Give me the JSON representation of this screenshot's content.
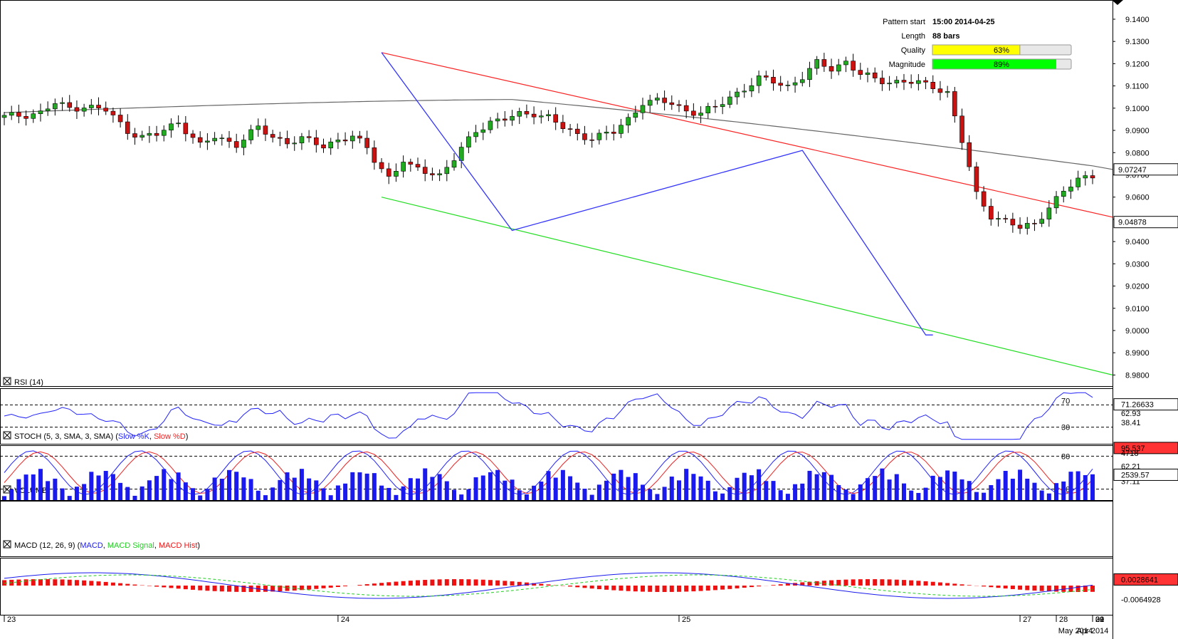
{
  "pattern_info": {
    "rows": [
      {
        "label": "Pattern start",
        "value": "15:00 2014-04-25"
      },
      {
        "label": "Length",
        "value": "88 bars"
      }
    ],
    "quality": {
      "label": "Quality",
      "text": "63%",
      "fraction": 0.63,
      "color": "#ffff00"
    },
    "magnitude": {
      "label": "Magnitude",
      "text": "89%",
      "fraction": 0.89,
      "color": "#00ff00"
    }
  },
  "price_axis": {
    "ticks": [
      "9.1400",
      "9.1300",
      "9.1200",
      "9.1100",
      "9.1000",
      "9.0900",
      "9.0800",
      "9.0700",
      "9.0600",
      "9.0500",
      "9.0400",
      "9.0300",
      "9.0200",
      "9.0100",
      "9.0000",
      "8.9900",
      "8.9800"
    ],
    "current_price": "9.04878",
    "ma_value": "9.07247"
  },
  "panels": {
    "rsi": {
      "title": "RSI (14)",
      "levels": [
        "70",
        "30"
      ],
      "right_labels": [
        "71.26633",
        "62.93",
        "38.41"
      ]
    },
    "stoch": {
      "title": "STOCH (5, 3, SMA, 3, SMA)",
      "k_label": "Slow %K",
      "d_label": "Slow %D",
      "levels": [
        "80",
        "20"
      ],
      "right_labels": [
        "95.537",
        "62.21",
        "37.11"
      ]
    },
    "volume": {
      "title": "VOLUME",
      "right_labels": [
        "4718",
        "2539.57"
      ]
    },
    "macd": {
      "title": "MACD (12, 26, 9)",
      "macd_label": "MACD",
      "signal_label": "MACD Signal",
      "hist_label": "MACD Hist",
      "right_labels": [
        "0.0028641",
        "-0.0064928"
      ]
    }
  },
  "time_axis": {
    "days": [
      "23",
      "24",
      "25",
      "27",
      "28",
      "29",
      "30",
      "01",
      "02"
    ],
    "months": [
      "Apr 2014",
      "May 2014"
    ]
  },
  "colors": {
    "bull": "#22aa22",
    "bear": "#cc1111",
    "pattern_lines": "#3333ff",
    "upper_trend": "#ff2222",
    "lower_trend": "#22dd22",
    "moving_average": "#666666",
    "rsi_line": "#2222ff",
    "stoch_k": "#2222ff",
    "stoch_d": "#ee2222",
    "volume_bar": "#1a1aee",
    "macd_line": "#1a1aee",
    "macd_signal": "#22cc22",
    "macd_hist": "#ee1111"
  },
  "chart_data": {
    "type": "candlestick",
    "price_range": [
      8.975,
      9.148
    ],
    "bars": 151,
    "close_anchors": [
      [
        0,
        9.096
      ],
      [
        5,
        9.098
      ],
      [
        7,
        9.102
      ],
      [
        9,
        9.1
      ],
      [
        11,
        9.101
      ],
      [
        14,
        9.099
      ],
      [
        17,
        9.09
      ],
      [
        19,
        9.087
      ],
      [
        21,
        9.088
      ],
      [
        24,
        9.094
      ],
      [
        27,
        9.083
      ],
      [
        29,
        9.087
      ],
      [
        32,
        9.084
      ],
      [
        35,
        9.091
      ],
      [
        37,
        9.087
      ],
      [
        39,
        9.085
      ],
      [
        41,
        9.086
      ],
      [
        44,
        9.083
      ],
      [
        46,
        9.086
      ],
      [
        48,
        9.087
      ],
      [
        50,
        9.082
      ],
      [
        51,
        9.077
      ],
      [
        53,
        9.069
      ],
      [
        55,
        9.076
      ],
      [
        56,
        9.073
      ],
      [
        58,
        9.072
      ],
      [
        60,
        9.07
      ],
      [
        62,
        9.077
      ],
      [
        65,
        9.09
      ],
      [
        67,
        9.094
      ],
      [
        69,
        9.095
      ],
      [
        71,
        9.097
      ],
      [
        73,
        9.098
      ],
      [
        75,
        9.096
      ],
      [
        77,
        9.091
      ],
      [
        79,
        9.088
      ],
      [
        81,
        9.087
      ],
      [
        84,
        9.089
      ],
      [
        86,
        9.095
      ],
      [
        88,
        9.103
      ],
      [
        90,
        9.103
      ],
      [
        92,
        9.102
      ],
      [
        94,
        9.099
      ],
      [
        96,
        9.098
      ],
      [
        98,
        9.1
      ],
      [
        100,
        9.105
      ],
      [
        102,
        9.109
      ],
      [
        104,
        9.113
      ],
      [
        106,
        9.112
      ],
      [
        108,
        9.11
      ],
      [
        110,
        9.114
      ],
      [
        112,
        9.12
      ],
      [
        114,
        9.118
      ],
      [
        116,
        9.121
      ],
      [
        118,
        9.115
      ],
      [
        120,
        9.113
      ],
      [
        122,
        9.112
      ],
      [
        124,
        9.112
      ],
      [
        126,
        9.111
      ],
      [
        128,
        9.11
      ],
      [
        130,
        9.107
      ],
      [
        132,
        9.085
      ],
      [
        134,
        9.061
      ],
      [
        136,
        9.052
      ],
      [
        138,
        9.049
      ],
      [
        140,
        9.046
      ],
      [
        142,
        9.048
      ],
      [
        144,
        9.056
      ],
      [
        146,
        9.062
      ],
      [
        148,
        9.068
      ],
      [
        150,
        9.07
      ]
    ],
    "current_price": 9.04878,
    "ma_value": 9.07247
  }
}
